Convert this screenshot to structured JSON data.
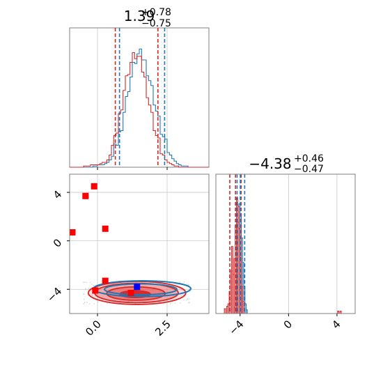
{
  "colors": {
    "red": "#d62728",
    "blue": "#1f77b4",
    "red_fill": "#e86a6a",
    "red_fill_dark": "#d62728",
    "frame": "#7f7f7f",
    "grid": "#c8c8c8",
    "marker_red": "#ff0000",
    "marker_blue": "#0000ff"
  },
  "chart_data": [
    {
      "panel": "top-left",
      "type": "histogram",
      "title": {
        "main": "1.39",
        "sup": "+0.78",
        "sub": "−0.75"
      },
      "xlim": [
        -1.0,
        4.0
      ],
      "grid": true,
      "red_quantiles": [
        0.64,
        1.39,
        2.17
      ],
      "blue_quantiles": [
        0.79,
        1.63,
        2.41
      ],
      "bin_edges": [
        -1.0,
        4.0
      ],
      "red_counts": [
        0,
        0,
        0,
        0,
        0,
        0,
        1,
        1,
        1,
        2,
        2,
        2,
        2,
        3,
        4,
        4,
        6,
        10,
        17,
        21,
        30,
        42,
        52,
        64,
        72,
        80,
        86,
        90,
        92,
        90,
        86,
        80,
        72,
        62,
        52,
        42,
        34,
        26,
        20,
        14,
        10,
        6,
        4,
        3,
        2,
        1,
        1,
        0,
        0,
        0,
        0,
        0,
        0,
        0,
        0,
        0,
        0,
        0,
        0,
        0
      ],
      "blue_counts": [
        0,
        0,
        0,
        0,
        0,
        0,
        0,
        0,
        0,
        0,
        1,
        1,
        2,
        2,
        2,
        3,
        4,
        6,
        9,
        14,
        20,
        27,
        35,
        46,
        55,
        66,
        74,
        82,
        88,
        92,
        92,
        90,
        86,
        80,
        72,
        64,
        55,
        46,
        38,
        30,
        24,
        18,
        14,
        10,
        7,
        5,
        3,
        2,
        1,
        1,
        1,
        0,
        0,
        0,
        0,
        0,
        0,
        0,
        0,
        0
      ]
    },
    {
      "panel": "bottom-left",
      "type": "contour",
      "xlim": [
        -1.0,
        4.0
      ],
      "ylim": [
        -6.0,
        5.5
      ],
      "xticks": [
        0.0,
        2.5
      ],
      "xtick_labels": [
        "0.0",
        "2.5"
      ],
      "yticks": [
        -4,
        0,
        4
      ],
      "ytick_labels": [
        "−4",
        "0",
        "4"
      ],
      "grid": true,
      "red_markers": [
        {
          "x": -0.9,
          "y": 0.7
        },
        {
          "x": -0.43,
          "y": 3.7
        },
        {
          "x": -0.12,
          "y": 4.5
        },
        {
          "x": 0.28,
          "y": 1.0
        },
        {
          "x": 0.28,
          "y": -3.3
        },
        {
          "x": -0.08,
          "y": -4.1
        },
        {
          "x": 1.2,
          "y": -4.3
        }
      ],
      "blue_markers": [
        {
          "x": 1.42,
          "y": -3.8
        }
      ],
      "red_contours": [
        {
          "cx": 1.35,
          "cy": -4.4,
          "rx": 0.55,
          "ry": 0.28,
          "level": "inner"
        },
        {
          "cx": 1.38,
          "cy": -4.35,
          "rx": 1.05,
          "ry": 0.55,
          "level": "mid"
        },
        {
          "cx": 1.4,
          "cy": -4.3,
          "rx": 1.5,
          "ry": 0.8,
          "level": "outer"
        },
        {
          "cx": 1.42,
          "cy": -4.3,
          "rx": 1.75,
          "ry": 0.95,
          "level": "outermost"
        }
      ],
      "blue_contours": [
        {
          "cx": 1.55,
          "cy": -4.0,
          "rx": 1.3,
          "ry": 0.45
        },
        {
          "cx": 1.6,
          "cy": -3.95,
          "rx": 1.75,
          "ry": 0.65
        }
      ]
    },
    {
      "panel": "bottom-right",
      "type": "histogram",
      "title": {
        "main": "−4.38",
        "sup": "+0.46",
        "sub": "−0.47"
      },
      "xlim": [
        -6.0,
        5.5
      ],
      "xticks": [
        -4,
        0,
        4
      ],
      "xtick_labels": [
        "−4",
        "0",
        "4"
      ],
      "grid": true,
      "red_quantiles": [
        -4.85,
        -4.38,
        -3.92
      ],
      "blue_quantiles": [
        -4.25,
        -3.98,
        -3.62
      ],
      "red_peaks": [
        {
          "x": -5.25,
          "h": 0.04
        },
        {
          "x": -5.05,
          "h": 0.06
        },
        {
          "x": -4.95,
          "h": 0.08
        },
        {
          "x": -4.85,
          "h": 0.18
        },
        {
          "x": -4.75,
          "h": 0.35
        },
        {
          "x": -4.65,
          "h": 0.55
        },
        {
          "x": -4.55,
          "h": 0.32
        },
        {
          "x": -4.45,
          "h": 0.45
        },
        {
          "x": -4.35,
          "h": 0.72
        },
        {
          "x": -4.25,
          "h": 0.95
        },
        {
          "x": -4.15,
          "h": 0.88
        },
        {
          "x": -4.05,
          "h": 0.7
        },
        {
          "x": -3.95,
          "h": 0.46
        },
        {
          "x": -3.85,
          "h": 0.22
        },
        {
          "x": -3.75,
          "h": 0.1
        },
        {
          "x": 4.1,
          "h": 0.02
        },
        {
          "x": 4.3,
          "h": 0.02
        }
      ],
      "blue_peaks": [
        {
          "x": -4.45,
          "h": 0.05
        },
        {
          "x": -4.35,
          "h": 0.2
        },
        {
          "x": -4.25,
          "h": 0.4
        },
        {
          "x": -4.15,
          "h": 0.75
        },
        {
          "x": -4.05,
          "h": 0.9
        },
        {
          "x": -3.95,
          "h": 0.82
        },
        {
          "x": -3.85,
          "h": 0.62
        },
        {
          "x": -3.75,
          "h": 0.42
        },
        {
          "x": -3.65,
          "h": 0.22
        },
        {
          "x": -3.55,
          "h": 0.08
        },
        {
          "x": -3.45,
          "h": 0.03
        }
      ]
    }
  ]
}
